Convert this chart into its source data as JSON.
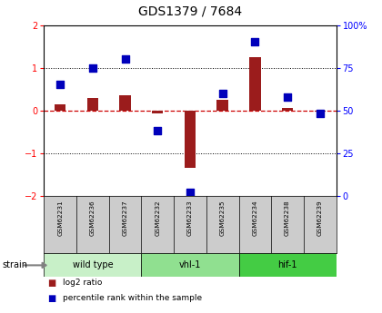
{
  "title": "GDS1379 / 7684",
  "samples": [
    "GSM62231",
    "GSM62236",
    "GSM62237",
    "GSM62232",
    "GSM62233",
    "GSM62235",
    "GSM62234",
    "GSM62238",
    "GSM62239"
  ],
  "log2_ratio": [
    0.15,
    0.3,
    0.35,
    -0.07,
    -1.35,
    0.25,
    1.25,
    0.05,
    -0.03
  ],
  "percentile_rank": [
    65,
    75,
    80,
    38,
    2,
    60,
    90,
    58,
    48
  ],
  "groups": [
    {
      "name": "wild type",
      "indices": [
        0,
        1,
        2
      ],
      "color": "#c8f0c8"
    },
    {
      "name": "vhl-1",
      "indices": [
        3,
        4,
        5
      ],
      "color": "#90e090"
    },
    {
      "name": "hif-1",
      "indices": [
        6,
        7,
        8
      ],
      "color": "#44cc44"
    }
  ],
  "ylim_left": [
    -2.0,
    2.0
  ],
  "ylim_right": [
    0,
    100
  ],
  "yticks_left": [
    -2,
    -1,
    0,
    1,
    2
  ],
  "yticks_right": [
    0,
    25,
    50,
    75,
    100
  ],
  "ytick_labels_right": [
    "0",
    "25",
    "50",
    "75",
    "100%"
  ],
  "bar_color": "#9b1c1c",
  "dot_color": "#0000bb",
  "zero_line_color": "#cc0000",
  "legend_red_label": "log2 ratio",
  "legend_blue_label": "percentile rank within the sample",
  "strain_label": "strain",
  "background_plot": "#ffffff",
  "background_sample_row": "#cccccc"
}
